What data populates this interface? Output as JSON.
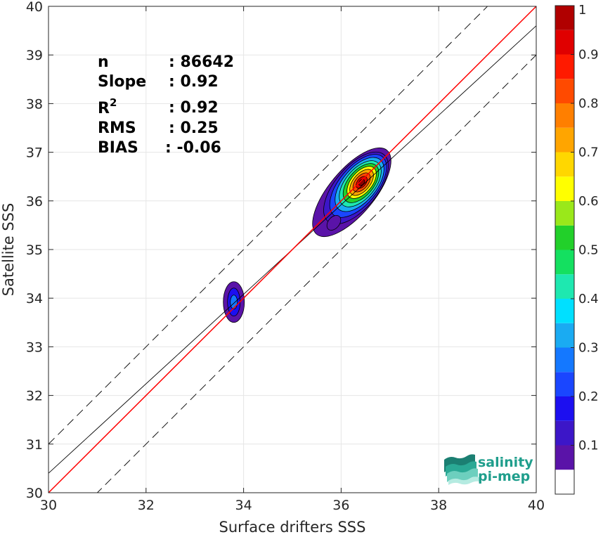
{
  "chart_data": {
    "type": "density_scatter",
    "xlabel": "Surface drifters SSS",
    "ylabel": "Satellite SSS",
    "xlim": [
      30,
      40
    ],
    "ylim": [
      30,
      40
    ],
    "xticks": [
      "30",
      "32",
      "34",
      "36",
      "38",
      "40"
    ],
    "yticks": [
      "30",
      "31",
      "32",
      "33",
      "34",
      "35",
      "36",
      "37",
      "38",
      "39",
      "40"
    ],
    "grid": true,
    "stats": {
      "n_label": "n",
      "n_value": ": 86642",
      "slope_label": "Slope",
      "slope_value": ": 0.92",
      "r2_base": "R",
      "r2_exp": "2",
      "r2_value": ": 0.92",
      "rms_label": "RMS",
      "rms_value": ": 0.25",
      "bias_label": "BIAS",
      "bias_value": ": -0.06"
    },
    "lines": {
      "identity": {
        "slope": 1,
        "intercept": 0,
        "color": "#ff0000"
      },
      "fit": {
        "slope": 0.92,
        "intercept": 2.8,
        "color": "#000000"
      },
      "upper_bound": {
        "slope": 1,
        "intercept": 1.0,
        "style": "dashed"
      },
      "lower_bound": {
        "slope": 1,
        "intercept": -1.0,
        "style": "dashed"
      }
    },
    "density_clusters": [
      {
        "name": "main",
        "peak_x": 36.42,
        "peak_y": 36.38,
        "peak_density": 1.0
      },
      {
        "name": "secondary",
        "peak_x": 33.8,
        "peak_y": 33.92,
        "peak_density": 0.3
      }
    ],
    "colorbar": {
      "range": [
        0,
        1
      ],
      "tick_labels": [
        "0.1",
        "0.2",
        "0.3",
        "0.4",
        "0.5",
        "0.6",
        "0.7",
        "0.8",
        "0.9",
        "1"
      ],
      "levels": [
        {
          "value": 0.05,
          "color": "#5a13a8"
        },
        {
          "value": 0.1,
          "color": "#3c16c8"
        },
        {
          "value": 0.15,
          "color": "#1c0ff0"
        },
        {
          "value": 0.2,
          "color": "#1a46ff"
        },
        {
          "value": 0.25,
          "color": "#1478ff"
        },
        {
          "value": 0.3,
          "color": "#1aabf2"
        },
        {
          "value": 0.35,
          "color": "#00e0ff"
        },
        {
          "value": 0.4,
          "color": "#1ee8b0"
        },
        {
          "value": 0.45,
          "color": "#14e060"
        },
        {
          "value": 0.5,
          "color": "#22d02a"
        },
        {
          "value": 0.55,
          "color": "#9ae81a"
        },
        {
          "value": 0.6,
          "color": "#ffff00"
        },
        {
          "value": 0.65,
          "color": "#ffd700"
        },
        {
          "value": 0.7,
          "color": "#ffa500"
        },
        {
          "value": 0.75,
          "color": "#ff7f00"
        },
        {
          "value": 0.8,
          "color": "#ff4a00"
        },
        {
          "value": 0.85,
          "color": "#ff1a00"
        },
        {
          "value": 0.9,
          "color": "#e00000"
        },
        {
          "value": 0.95,
          "color": "#b00000"
        },
        {
          "value": 1.0,
          "color": "#8a0000"
        }
      ],
      "empty_color": "#ffffff"
    }
  },
  "logo": {
    "line1": "salinity",
    "line2": "pi-mep"
  }
}
